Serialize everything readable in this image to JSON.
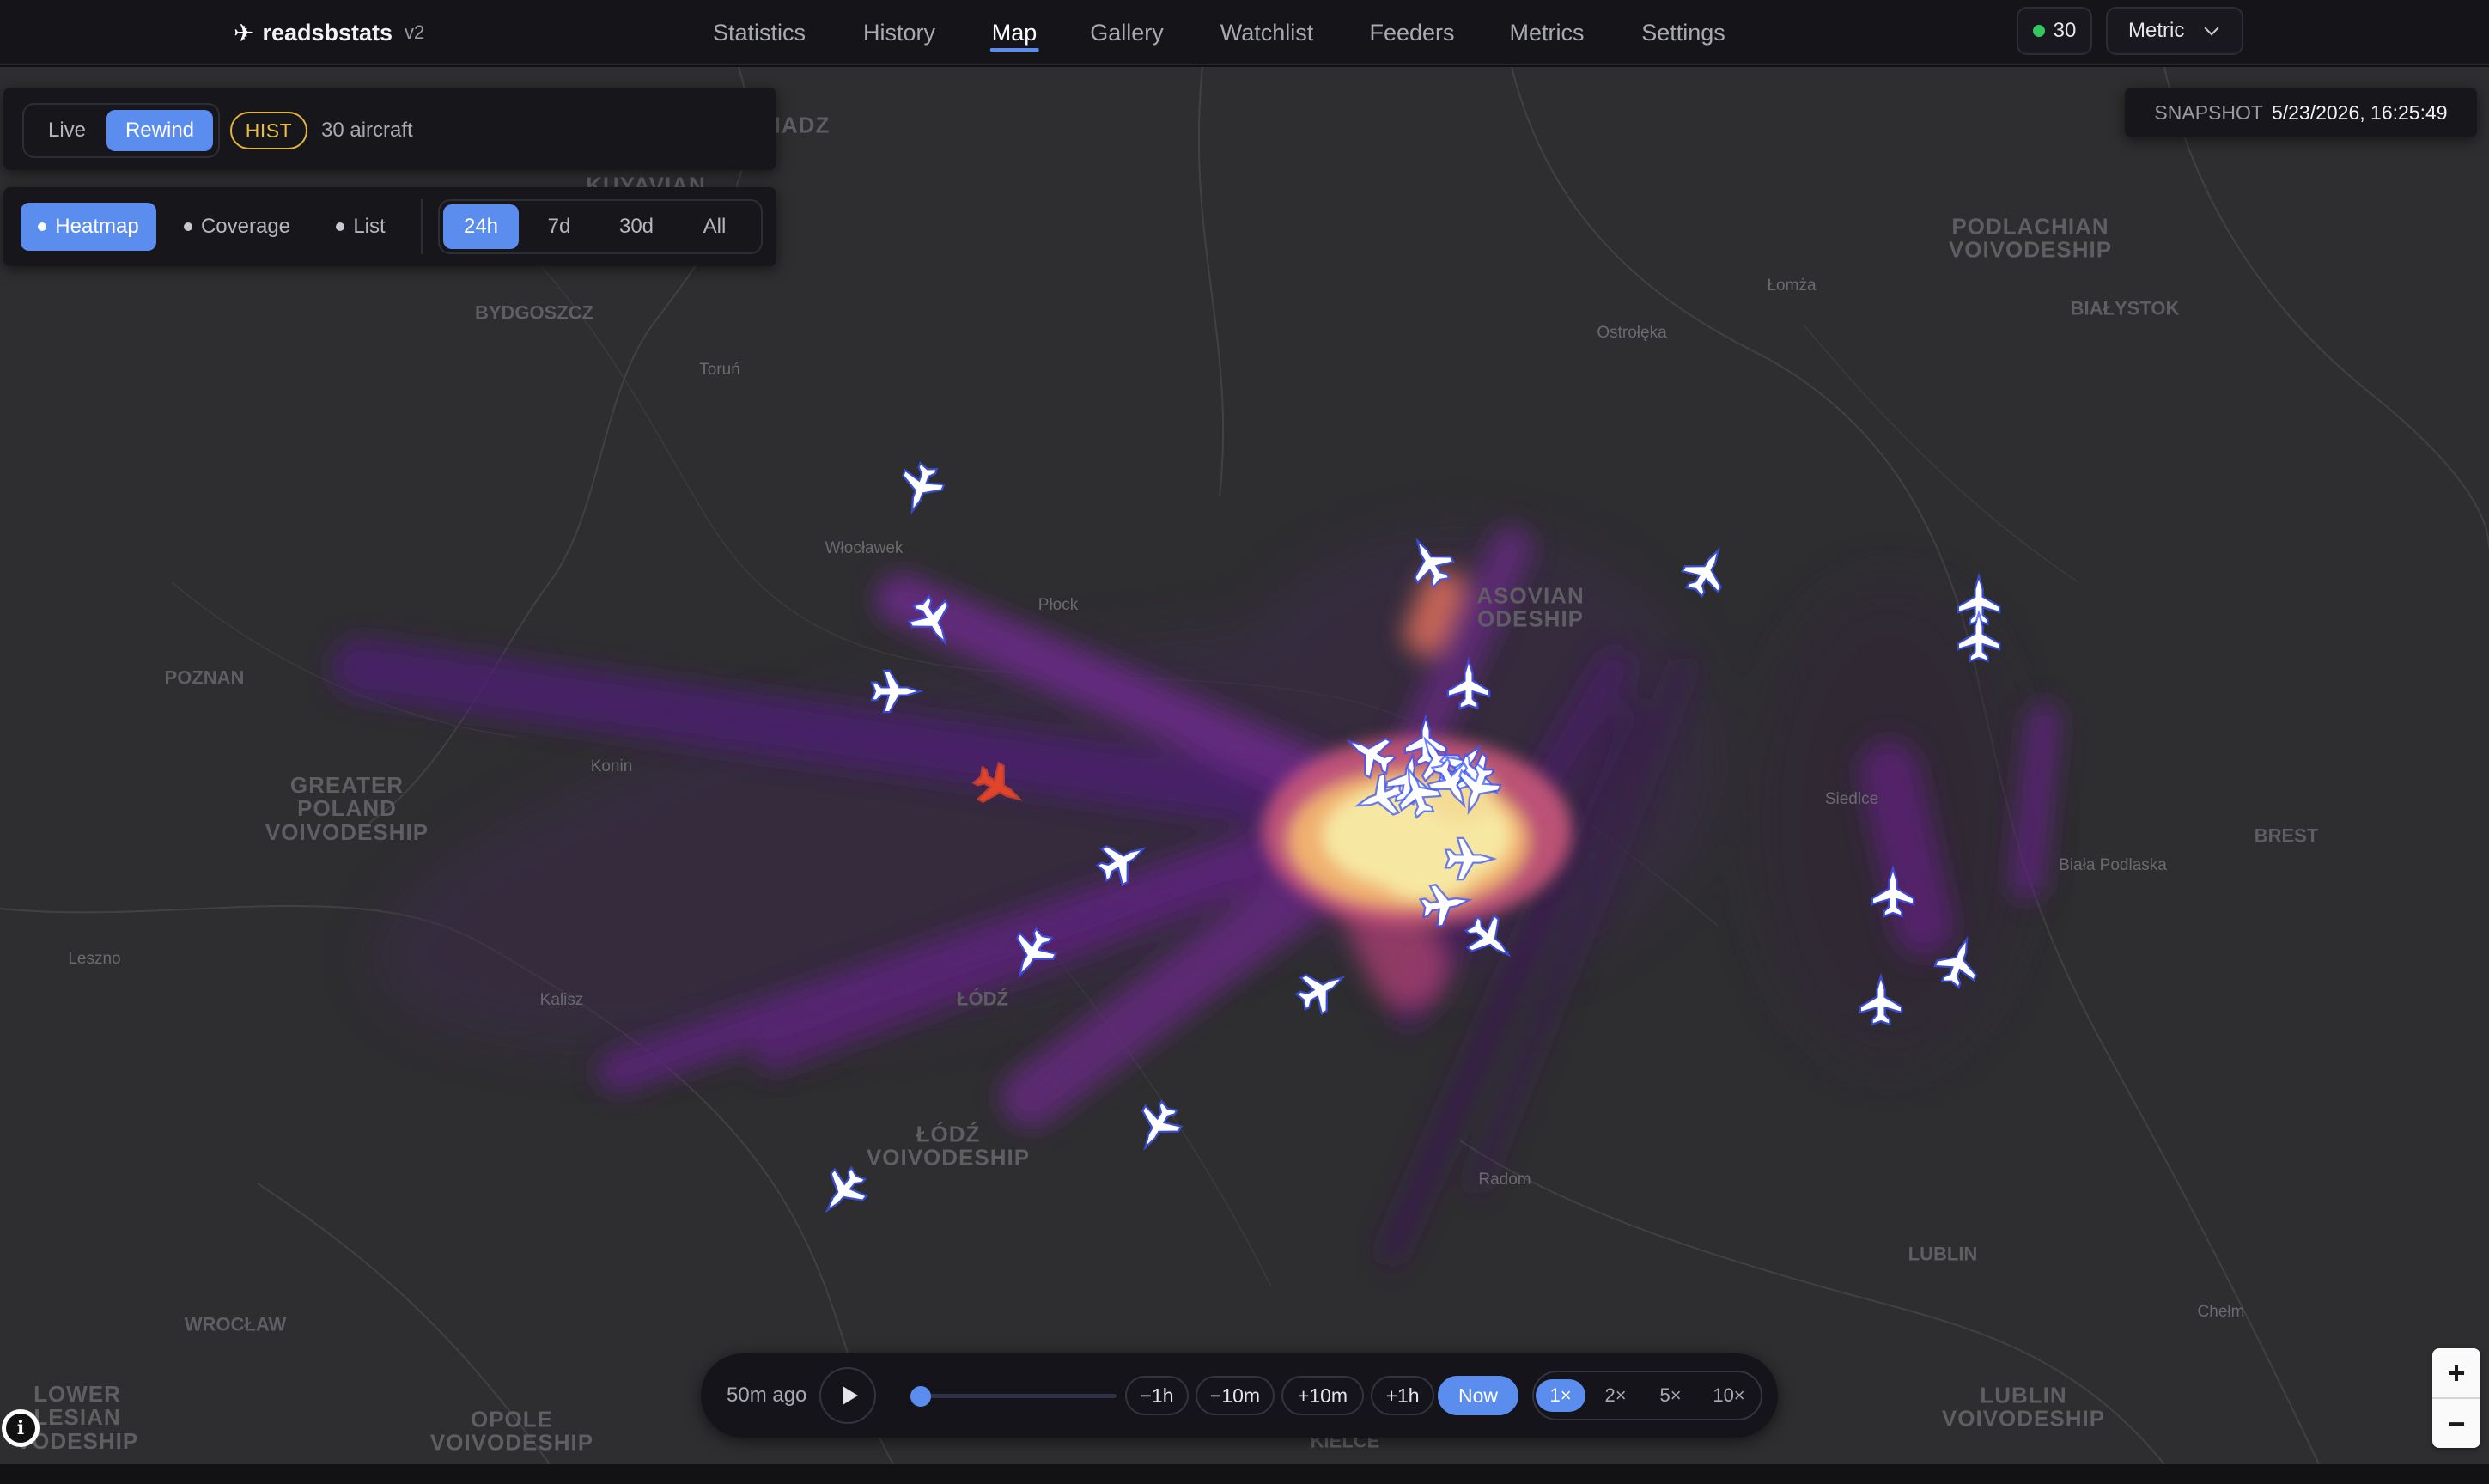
{
  "brand": {
    "name": "readsbstats",
    "version": "v2"
  },
  "nav": [
    {
      "label": "Statistics",
      "active": false
    },
    {
      "label": "History",
      "active": false
    },
    {
      "label": "Map",
      "active": true
    },
    {
      "label": "Gallery",
      "active": false
    },
    {
      "label": "Watchlist",
      "active": false
    },
    {
      "label": "Feeders",
      "active": false
    },
    {
      "label": "Metrics",
      "active": false
    },
    {
      "label": "Settings",
      "active": false
    }
  ],
  "status": {
    "aircraft_online": "30"
  },
  "units": {
    "selected": "Metric"
  },
  "mode": {
    "live_label": "Live",
    "rewind_label": "Rewind",
    "selected": "Rewind"
  },
  "hist_badge": "HIST",
  "aircraft_count": "30 aircraft",
  "layers": [
    {
      "label": "Heatmap",
      "active": true
    },
    {
      "label": "Coverage",
      "active": false
    },
    {
      "label": "List",
      "active": false
    }
  ],
  "ranges": [
    {
      "label": "24h",
      "active": true
    },
    {
      "label": "7d",
      "active": false
    },
    {
      "label": "30d",
      "active": false
    },
    {
      "label": "All",
      "active": false
    }
  ],
  "snapshot": {
    "label": "SNAPSHOT",
    "timestamp": "5/23/2026, 16:25:49"
  },
  "playback": {
    "ago": "50m ago",
    "position": 0.05,
    "steps": [
      "−1h",
      "−10m",
      "+10m",
      "+1h"
    ],
    "now_label": "Now",
    "speeds": [
      "1×",
      "2×",
      "5×",
      "10×"
    ],
    "selected_speed": "1×"
  },
  "zoom": {
    "in": "+",
    "out": "−"
  },
  "map_labels": {
    "regions": [
      "PODLACHIAN\nVOIVODESHIP",
      "GREATER\nPOLAND\nVOIVODESHIP",
      "ŁÓDŹ\nVOIVODESHIP",
      "LOWER\nLESIAN\nVODESHIP",
      "OPOLE\nVOIVODESHIP",
      "LUBLIN\nVOIVODESHIP",
      "ASOVIAN\nODESHIP",
      "KUYAVIAN",
      "IADZ"
    ],
    "cities_big": [
      "BYDGOSZCZ",
      "POZNAN",
      "BIAŁYSTOK",
      "BREST",
      "WROCŁAW",
      "LUBLIN",
      "ŁÓDŹ",
      "KIELCE"
    ],
    "towns": [
      "Toruń",
      "Łomża",
      "Ostrołęka",
      "Włocławek",
      "Płock",
      "Konin",
      "Leszno",
      "Kalisz",
      "Siedlce",
      "Biała Podlaska",
      "Radom",
      "Chełm"
    ]
  },
  "colors": {
    "accent": "#5b8def",
    "hist": "#e2b43a",
    "online": "#32c860",
    "aircraft": "#ffffff",
    "aircraft_outline": "#3b57ff",
    "aircraft_alert": "#e0452b"
  },
  "aircraft_icon": "airplane-icon"
}
